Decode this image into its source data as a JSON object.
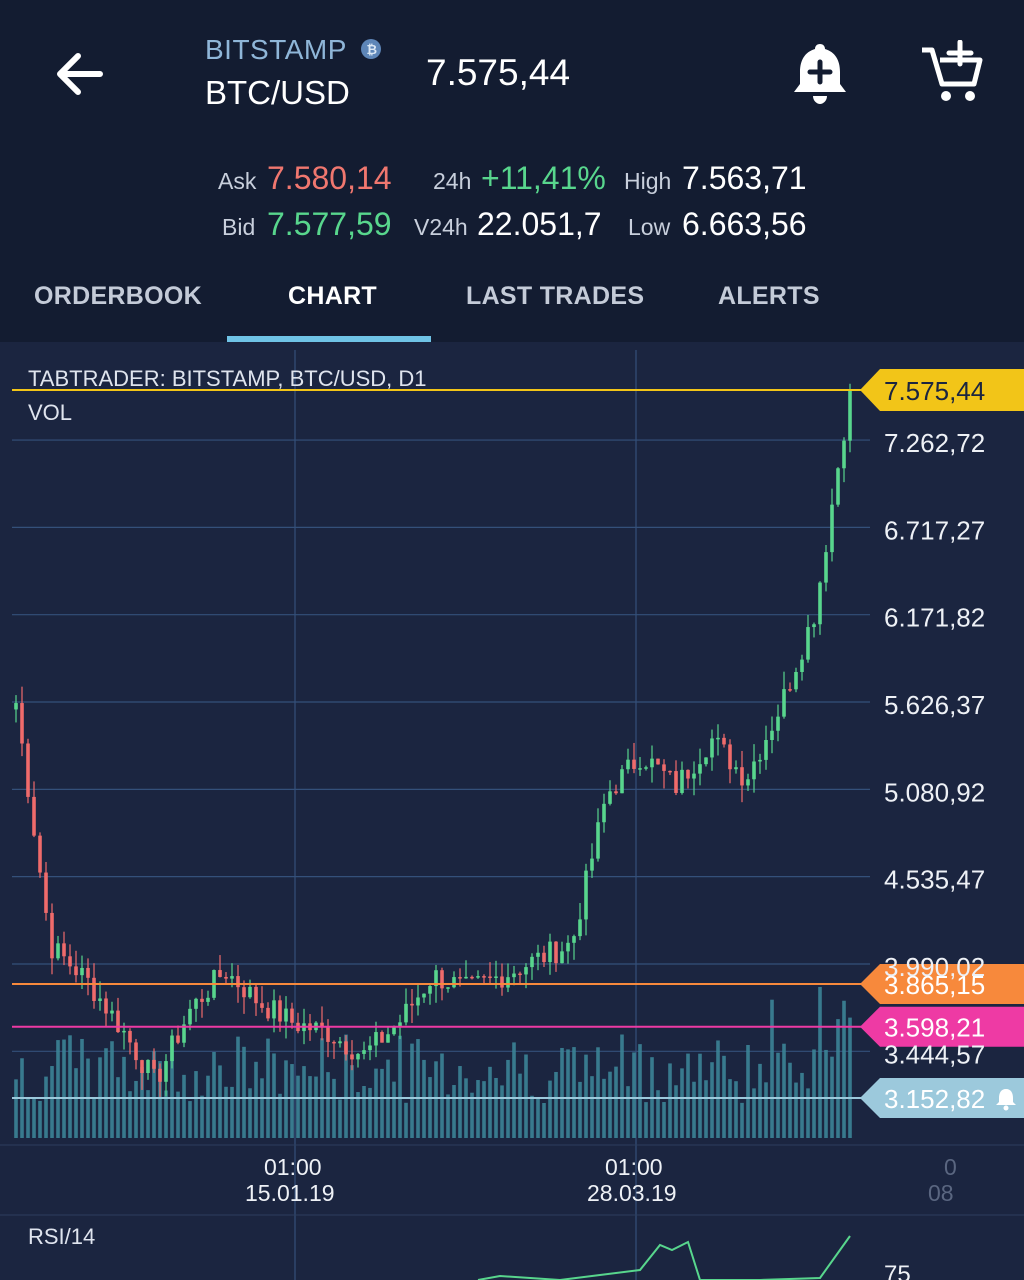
{
  "header": {
    "exchange": "BITSTAMP",
    "pair": "BTC/USD",
    "last_price": "7.575,44",
    "icons": [
      "back-arrow-icon",
      "bitcoin-logo-icon",
      "add-alert-bell-icon",
      "add-to-cart-icon"
    ]
  },
  "stats": {
    "ask_label": "Ask",
    "ask_value": "7.580,14",
    "bid_label": "Bid",
    "bid_value": "7.577,59",
    "change_label": "24h",
    "change_value": "+11,41%",
    "volume_label": "V24h",
    "volume_value": "22.051,7",
    "high_label": "High",
    "high_value": "7.563,71",
    "low_label": "Low",
    "low_value": "6.663,56"
  },
  "tabs": [
    {
      "label": "ORDERBOOK",
      "active": false
    },
    {
      "label": "CHART",
      "active": true
    },
    {
      "label": "LAST TRADES",
      "active": false
    },
    {
      "label": "ALERTS",
      "active": false
    }
  ],
  "chart": {
    "title": "TABTRADER: BITSTAMP, BTC/USD, D1",
    "vol_label": "VOL",
    "rsi_label": "RSI/14",
    "rsi_tick": "75",
    "price_ticks": [
      "7.262,72",
      "6.717,27",
      "6.171,82",
      "5.626,37",
      "5.080,92",
      "4.535,47",
      "3.990,02",
      "3.444,57"
    ],
    "time_labels": [
      {
        "time": "01:00",
        "date": "15.01.19"
      },
      {
        "time": "01:00",
        "date": "28.03.19"
      },
      {
        "time": "0",
        "date": "08"
      }
    ],
    "current_price_tag": "7.575,44",
    "alert_lines": [
      {
        "value": "3.865,15",
        "color": "#f7893c"
      },
      {
        "value": "3.598,21",
        "color": "#ee3aa4"
      },
      {
        "value": "3.152,82",
        "color": "#9cc9dc",
        "has_bell": true
      }
    ],
    "colors": {
      "up": "#58d68d",
      "down": "#ef6b6b",
      "volume": "#3c8497",
      "price_line": "#f2c518"
    }
  },
  "chart_data": {
    "type": "candlestick",
    "title": "TABTRADER: BITSTAMP, BTC/USD, D1",
    "y_ticks": [
      7262.72,
      6717.27,
      6171.82,
      5626.37,
      5080.92,
      4535.47,
      3990.02,
      3444.57
    ],
    "ylim": [
      3060,
      7630
    ],
    "x_ticks": [
      "15.01.19",
      "28.03.19"
    ],
    "current_price": 7575.44,
    "alert_levels": [
      3865.15,
      3598.21,
      3152.82
    ],
    "approx_close_path": [
      {
        "date": "start",
        "price": 5620
      },
      {
        "date": "next",
        "price": 4100
      },
      {
        "date": "next",
        "price": 3900
      },
      {
        "date": "next",
        "price": 3600
      },
      {
        "date": "next",
        "price": 3250
      },
      {
        "date": "next",
        "price": 3700
      },
      {
        "date": "next",
        "price": 3950
      },
      {
        "date": "next",
        "price": 3750
      },
      {
        "date": "15.01.19",
        "price": 3620
      },
      {
        "date": "next",
        "price": 3560
      },
      {
        "date": "next",
        "price": 3420
      },
      {
        "date": "next",
        "price": 3620
      },
      {
        "date": "next",
        "price": 3920
      },
      {
        "date": "next",
        "price": 3830
      },
      {
        "date": "next",
        "price": 3920
      },
      {
        "date": "next",
        "price": 4020
      },
      {
        "date": "28.03.19",
        "price": 4120
      },
      {
        "date": "next",
        "price": 5050
      },
      {
        "date": "next",
        "price": 5300
      },
      {
        "date": "next",
        "price": 5100
      },
      {
        "date": "next",
        "price": 5400
      },
      {
        "date": "next",
        "price": 5150
      },
      {
        "date": "next",
        "price": 5600
      },
      {
        "date": "next",
        "price": 6200
      },
      {
        "date": "next",
        "price": 7575
      }
    ]
  }
}
